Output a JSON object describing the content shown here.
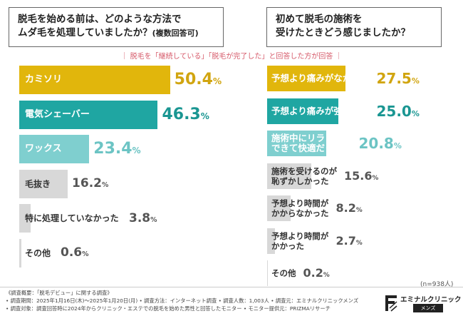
{
  "titles": {
    "left": {
      "line1": "脱毛を始める前は、どのような方法で",
      "line2_main": "ムダ毛を処理していましたか？",
      "line2_small": "(複数回答可)"
    },
    "right": {
      "line1": "初めて脱毛の施術を",
      "line2": "受けたときどう感じましたか？"
    }
  },
  "subtitle": "｜ 脱毛を「継続している」「脱毛が完了した」と回答した方が回答 ｜",
  "chart_data": [
    {
      "type": "bar",
      "orientation": "horizontal",
      "title": "脱毛を始める前は、どのような方法でムダ毛を処理していましたか？(複数回答可)",
      "categories": [
        "カミソリ",
        "電気シェーバー",
        "ワックス",
        "毛抜き",
        "特に処理していなかった",
        "その他"
      ],
      "values": [
        50.4,
        46.3,
        23.4,
        16.2,
        3.8,
        0.6
      ],
      "value_labels": [
        "50.4",
        "46.3",
        "23.4",
        "16.2",
        "3.8",
        "0.6"
      ],
      "unit": "%",
      "colors": [
        "#e1b60c",
        "#1fa6a2",
        "#7fcfcf",
        "#d8d8d8",
        "#d8d8d8",
        "#d8d8d8"
      ],
      "value_colors": [
        "#d1a510",
        "#1a9692",
        "#6cc4c4",
        "#555555",
        "#555555",
        "#555555"
      ]
    },
    {
      "type": "bar",
      "orientation": "horizontal",
      "title": "初めて脱毛の施術を受けたときどう感じましたか？",
      "categories": [
        "予想より痛みがなかった",
        "予想より痛みが強かった",
        "施術中にリラックスできて快適だった",
        "施術を受けるのが恥ずかしかった",
        "予想より時間がかからなかった",
        "予想より時間がかかった",
        "その他"
      ],
      "label_lines": [
        [
          "予想より痛みがなかった"
        ],
        [
          "予想より痛みが強かった"
        ],
        [
          "施術中にリラックス",
          "できて快適だった"
        ],
        [
          "施術を受けるのが",
          "恥ずかしかった"
        ],
        [
          "予想より時間が",
          "かからなかった"
        ],
        [
          "予想より時間が",
          "かかった"
        ],
        [
          "その他"
        ]
      ],
      "values": [
        27.5,
        25.0,
        20.8,
        15.6,
        8.2,
        2.7,
        0.2
      ],
      "value_labels": [
        "27.5",
        "25.0",
        "20.8",
        "15.6",
        "8.2",
        "2.7",
        "0.2"
      ],
      "unit": "%",
      "colors": [
        "#e1b60c",
        "#1fa6a2",
        "#7fcfcf",
        "#d8d8d8",
        "#d8d8d8",
        "#d8d8d8",
        "#d8d8d8"
      ],
      "value_colors": [
        "#d1a510",
        "#1a9692",
        "#6cc4c4",
        "#555555",
        "#555555",
        "#555555",
        "#555555"
      ]
    }
  ],
  "n_label": "(n=938人)",
  "notes": [
    "《調査概要：「脱毛デビュー」に関する調査》",
    "• 調査期間：2025年1月16日(木)〜2025年1月20日(月)  • 調査方法：インターネット調査  • 調査人数：1,003人  • 調査元：エミナルクリニックメンズ",
    "• 調査対象：調査回答時に2024年からクリニック・エステでの脱毛を始めた男性と回答したモニター  • モニター提供元：PRIZMAリサーチ"
  ],
  "brand": {
    "name": "エミナルクリニック",
    "sub": "メンズ"
  }
}
